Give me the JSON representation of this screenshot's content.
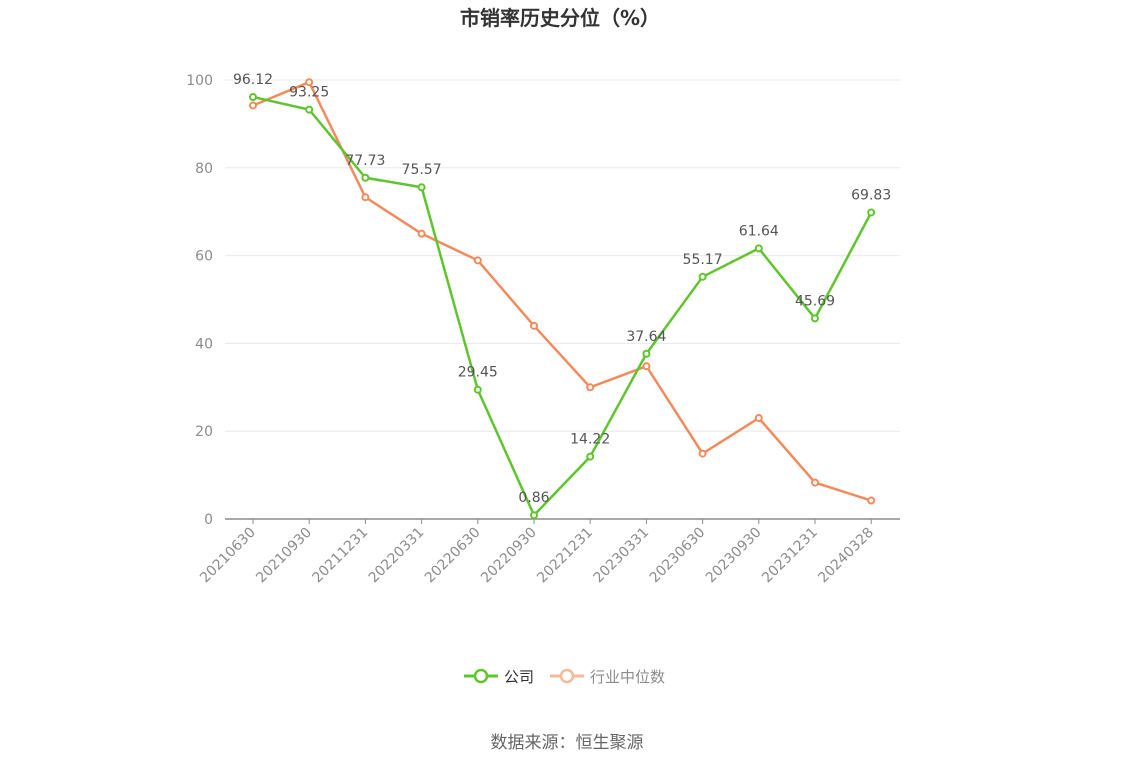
{
  "chart_data": {
    "type": "line",
    "title": "市销率历史分位（%）",
    "x": [
      "20210630",
      "20210930",
      "20211231",
      "20220331",
      "20220630",
      "20220930",
      "20221231",
      "20230331",
      "20230630",
      "20230930",
      "20231231",
      "20240328"
    ],
    "ylim": [
      0,
      100
    ],
    "yticks": [
      0,
      20,
      40,
      60,
      80,
      100
    ],
    "grid": true,
    "legend_position": "bottom",
    "series": [
      {
        "name": "公司",
        "color": "#5ec52e",
        "values": [
          96.12,
          93.25,
          77.73,
          75.57,
          29.45,
          0.86,
          14.22,
          37.64,
          55.17,
          61.64,
          45.69,
          69.83
        ],
        "labels": [
          "96.12",
          "93.25",
          "77.73",
          "75.57",
          "29.45",
          "0.86",
          "14.22",
          "37.64",
          "55.17",
          "61.64",
          "45.69",
          "69.83"
        ]
      },
      {
        "name": "行业中位数",
        "color": "#f28b5b",
        "legend_color": "#f6b89a",
        "values": [
          94.2,
          99.5,
          73.3,
          65.0,
          58.9,
          44.0,
          30.0,
          34.8,
          14.9,
          23.0,
          8.3,
          4.2
        ]
      }
    ]
  },
  "source_text": "数据来源：恒生聚源"
}
